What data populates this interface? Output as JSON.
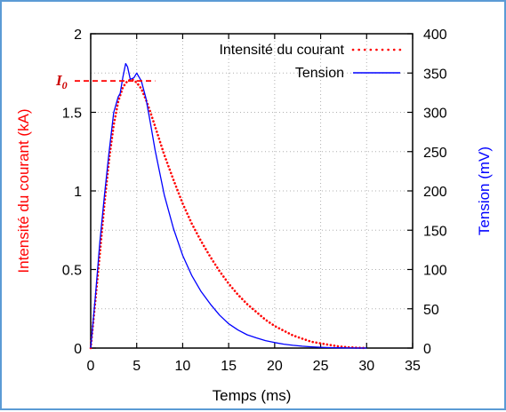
{
  "chart_data": {
    "type": "line",
    "xlabel": "Temps (ms)",
    "ylabel_left": "Intensité du courant (kA)",
    "ylabel_right": "Tension (mV)",
    "xlim": [
      0,
      35
    ],
    "ylim_left": [
      0,
      2
    ],
    "ylim_right": [
      0,
      400
    ],
    "x_ticks": [
      "0",
      "5",
      "10",
      "15",
      "20",
      "25",
      "30",
      "35"
    ],
    "y_left_ticks": [
      "0",
      "0.5",
      "1",
      "1.5",
      "2"
    ],
    "y_right_ticks": [
      "0",
      "50",
      "100",
      "150",
      "200",
      "250",
      "300",
      "350",
      "400"
    ],
    "grid": true,
    "legend_position": "top-right",
    "annotation": {
      "label": "I",
      "subscript": "0",
      "y": 1.7,
      "x_end": 7
    },
    "series": [
      {
        "name": "Intensité du courant",
        "axis": "left",
        "style": "dotted",
        "color": "#ff0000",
        "x": [
          0,
          0.5,
          1,
          1.5,
          2,
          2.5,
          3,
          3.5,
          4,
          4.5,
          5,
          5.5,
          6,
          6.5,
          7,
          8,
          9,
          10,
          11,
          12,
          13,
          14,
          15,
          16,
          17,
          18,
          19,
          20,
          21,
          22,
          23,
          24,
          25,
          26,
          27,
          28,
          29,
          30
        ],
        "y": [
          0,
          0.3,
          0.6,
          0.92,
          1.2,
          1.42,
          1.57,
          1.66,
          1.7,
          1.71,
          1.69,
          1.65,
          1.58,
          1.5,
          1.41,
          1.23,
          1.07,
          0.92,
          0.79,
          0.68,
          0.58,
          0.49,
          0.41,
          0.34,
          0.28,
          0.23,
          0.18,
          0.14,
          0.11,
          0.08,
          0.06,
          0.04,
          0.03,
          0.02,
          0.01,
          0.005,
          0.002,
          0
        ]
      },
      {
        "name": "Tension",
        "axis": "right",
        "style": "solid",
        "color": "#0000ff",
        "x": [
          0,
          0.5,
          1,
          1.5,
          2,
          2.5,
          3,
          3.2,
          3.5,
          3.8,
          4.0,
          4.3,
          4.7,
          5.0,
          5.5,
          6,
          6.5,
          7,
          8,
          9,
          10,
          11,
          12,
          13,
          14,
          15,
          16,
          17,
          18,
          19,
          20,
          21,
          22,
          23,
          24,
          25,
          26,
          27,
          28,
          29,
          30
        ],
        "y": [
          0,
          65,
          135,
          195,
          250,
          300,
          320,
          324,
          345,
          362,
          358,
          342,
          344,
          350,
          340,
          318,
          286,
          252,
          195,
          152,
          118,
          92,
          72,
          56,
          42,
          31,
          23,
          17,
          13,
          9.5,
          7,
          5,
          3.5,
          2.4,
          1.6,
          1,
          0.6,
          0.3,
          0.15,
          0.05,
          0
        ]
      }
    ]
  }
}
